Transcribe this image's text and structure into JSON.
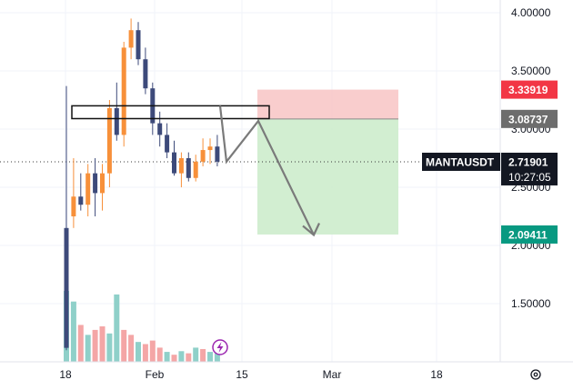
{
  "chart_data": {
    "type": "candlestick",
    "symbol": "MANTAUSDT",
    "y_axis_ticks": [
      "4.00000",
      "3.50000",
      "3.00000",
      "2.50000",
      "2.00000",
      "1.50000"
    ],
    "y_tick_values": [
      4.0,
      3.5,
      3.0,
      2.5,
      2.0,
      1.5
    ],
    "x_axis_ticks": [
      "18",
      "Feb",
      "15",
      "Mar",
      "18"
    ],
    "price_labels": {
      "stop_loss": "3.33919",
      "entry": "3.08737",
      "current": "2.71901",
      "countdown": "10:27:05",
      "take_profit": "2.09411"
    },
    "current_price": 2.71901,
    "entry_price": 3.08737,
    "stop_price": 3.33919,
    "target_price": 2.09411,
    "resistance_zone": [
      3.09,
      3.2
    ],
    "projected_path": [
      3.2,
      2.72,
      3.07,
      2.09
    ],
    "candles": [
      {
        "o": 2.15,
        "h": 3.37,
        "l": 1.1,
        "c": 1.12
      },
      {
        "o": 2.25,
        "h": 2.75,
        "l": 2.15,
        "c": 2.42
      },
      {
        "o": 2.42,
        "h": 2.62,
        "l": 2.3,
        "c": 2.35
      },
      {
        "o": 2.35,
        "h": 2.7,
        "l": 2.25,
        "c": 2.62
      },
      {
        "o": 2.62,
        "h": 2.75,
        "l": 2.25,
        "c": 2.45
      },
      {
        "o": 2.45,
        "h": 2.7,
        "l": 2.3,
        "c": 2.62
      },
      {
        "o": 2.62,
        "h": 3.25,
        "l": 2.5,
        "c": 3.18
      },
      {
        "o": 3.18,
        "h": 3.4,
        "l": 2.9,
        "c": 2.95
      },
      {
        "o": 2.95,
        "h": 3.75,
        "l": 2.85,
        "c": 3.7
      },
      {
        "o": 3.7,
        "h": 3.95,
        "l": 3.6,
        "c": 3.85
      },
      {
        "o": 3.85,
        "h": 3.92,
        "l": 3.55,
        "c": 3.6
      },
      {
        "o": 3.6,
        "h": 3.7,
        "l": 3.3,
        "c": 3.35
      },
      {
        "o": 3.35,
        "h": 3.4,
        "l": 2.95,
        "c": 3.05
      },
      {
        "o": 3.05,
        "h": 3.15,
        "l": 2.85,
        "c": 2.95
      },
      {
        "o": 2.95,
        "h": 3.05,
        "l": 2.75,
        "c": 2.8
      },
      {
        "o": 2.8,
        "h": 2.9,
        "l": 2.6,
        "c": 2.62
      },
      {
        "o": 2.62,
        "h": 2.8,
        "l": 2.5,
        "c": 2.75
      },
      {
        "o": 2.75,
        "h": 2.8,
        "l": 2.55,
        "c": 2.58
      },
      {
        "o": 2.58,
        "h": 2.78,
        "l": 2.55,
        "c": 2.72
      },
      {
        "o": 2.72,
        "h": 2.92,
        "l": 2.68,
        "c": 2.82
      },
      {
        "o": 2.82,
        "h": 2.92,
        "l": 2.7,
        "c": 2.85
      },
      {
        "o": 2.85,
        "h": 2.95,
        "l": 2.68,
        "c": 2.72
      }
    ],
    "volumes": [
      {
        "v": 1.0,
        "dir": "up"
      },
      {
        "v": 0.85,
        "dir": "up"
      },
      {
        "v": 0.52,
        "dir": "down"
      },
      {
        "v": 0.38,
        "dir": "up"
      },
      {
        "v": 0.45,
        "dir": "down"
      },
      {
        "v": 0.5,
        "dir": "down"
      },
      {
        "v": 0.4,
        "dir": "up"
      },
      {
        "v": 0.95,
        "dir": "up"
      },
      {
        "v": 0.45,
        "dir": "down"
      },
      {
        "v": 0.38,
        "dir": "down"
      },
      {
        "v": 0.28,
        "dir": "up"
      },
      {
        "v": 0.25,
        "dir": "down"
      },
      {
        "v": 0.3,
        "dir": "down"
      },
      {
        "v": 0.2,
        "dir": "down"
      },
      {
        "v": 0.14,
        "dir": "up"
      },
      {
        "v": 0.1,
        "dir": "down"
      },
      {
        "v": 0.15,
        "dir": "up"
      },
      {
        "v": 0.12,
        "dir": "down"
      },
      {
        "v": 0.2,
        "dir": "up"
      },
      {
        "v": 0.18,
        "dir": "down"
      },
      {
        "v": 0.14,
        "dir": "up"
      },
      {
        "v": 0.12,
        "dir": "up"
      }
    ],
    "colors": {
      "up": "#f7903a",
      "down": "#3d4a7a",
      "vol_up": "#f4a6a6",
      "vol_down": "#8fd0c9",
      "stop_zone": "#f8c4c4",
      "target_zone": "#cdeccc",
      "stop_label": "#f23645",
      "entry_label": "#6d6d6d",
      "current_label": "#131722",
      "target_label": "#089981",
      "lightning": "#9c27b0"
    }
  }
}
